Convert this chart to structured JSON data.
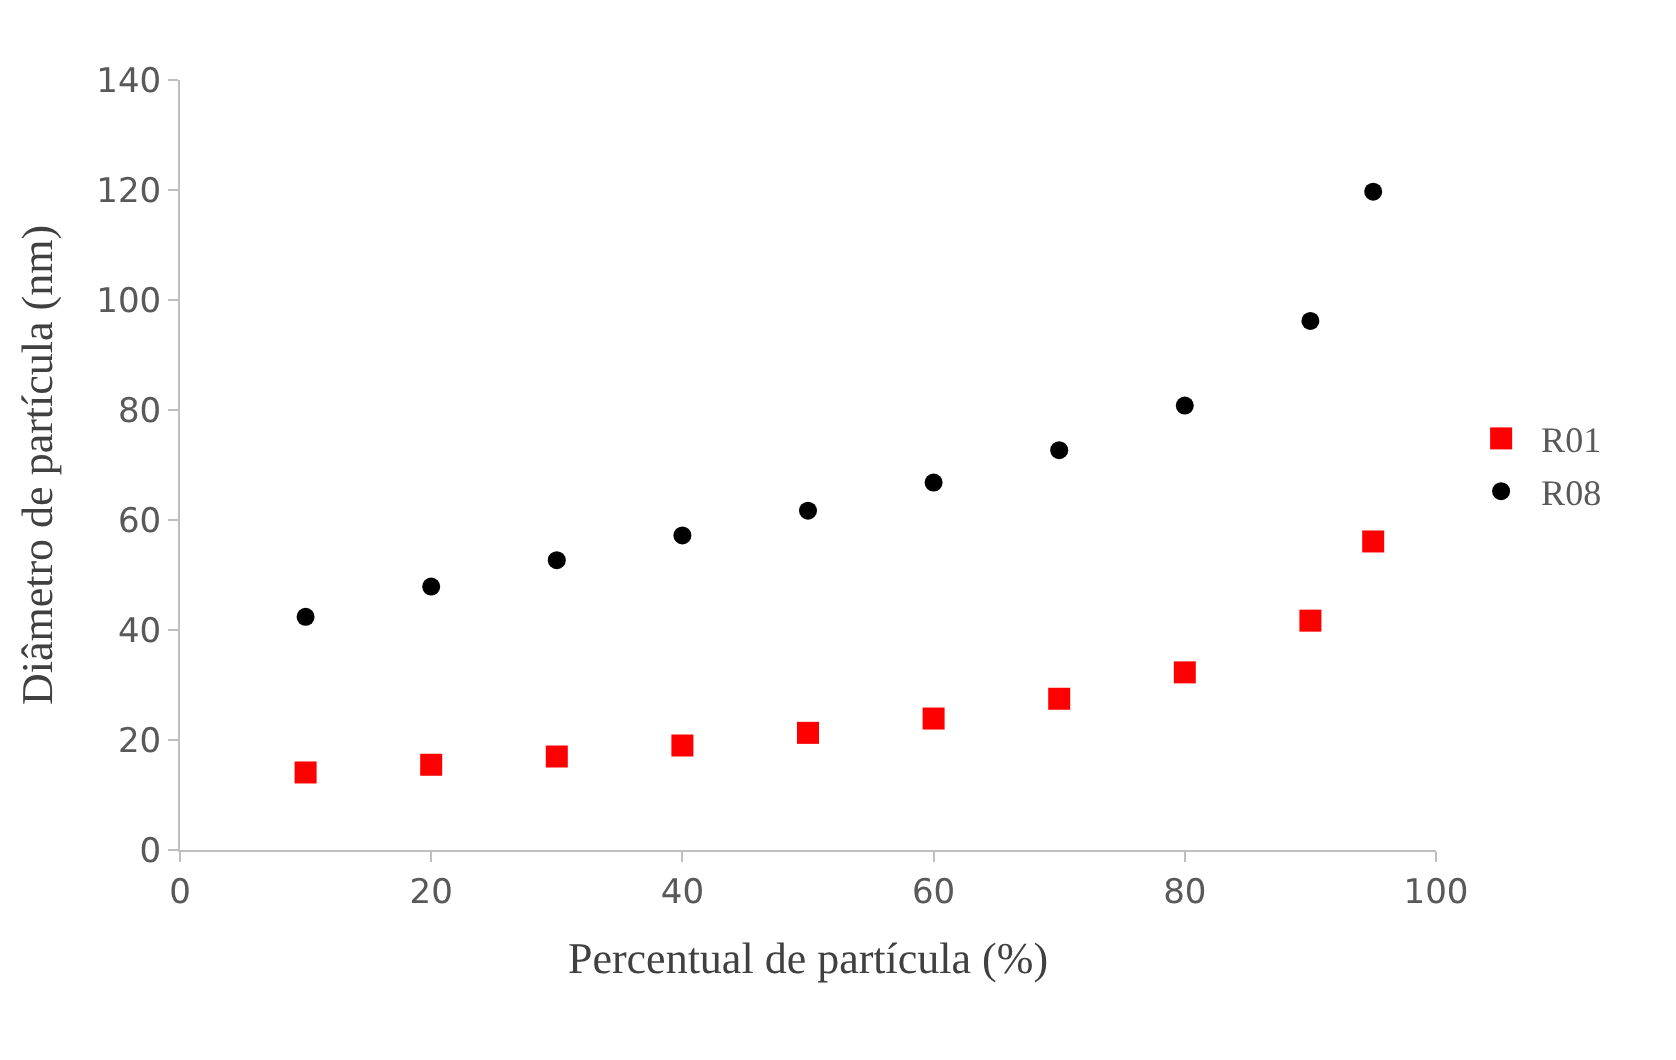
{
  "chart_data": {
    "type": "scatter",
    "xlabel": "Percentual de partícula (%)",
    "ylabel": "Diâmetro de partícula (nm)",
    "x": [
      10,
      20,
      30,
      40,
      50,
      60,
      70,
      80,
      90,
      95
    ],
    "series": [
      {
        "name": "R01",
        "color": "#ff0000",
        "marker": "square",
        "values": [
          14.1,
          15.5,
          17.0,
          19.0,
          21.3,
          23.9,
          27.5,
          32.3,
          41.7,
          56.1
        ]
      },
      {
        "name": "R08",
        "color": "#000000",
        "marker": "circle",
        "values": [
          42.4,
          47.9,
          52.7,
          57.2,
          61.7,
          66.8,
          72.7,
          80.8,
          96.2,
          119.7
        ]
      }
    ],
    "xlim": [
      0,
      100
    ],
    "xticks": [
      0,
      20,
      40,
      60,
      80,
      100
    ],
    "ylim": [
      0,
      140
    ],
    "yticks": [
      0,
      20,
      40,
      60,
      80,
      100,
      120,
      140
    ],
    "legend": "right"
  }
}
